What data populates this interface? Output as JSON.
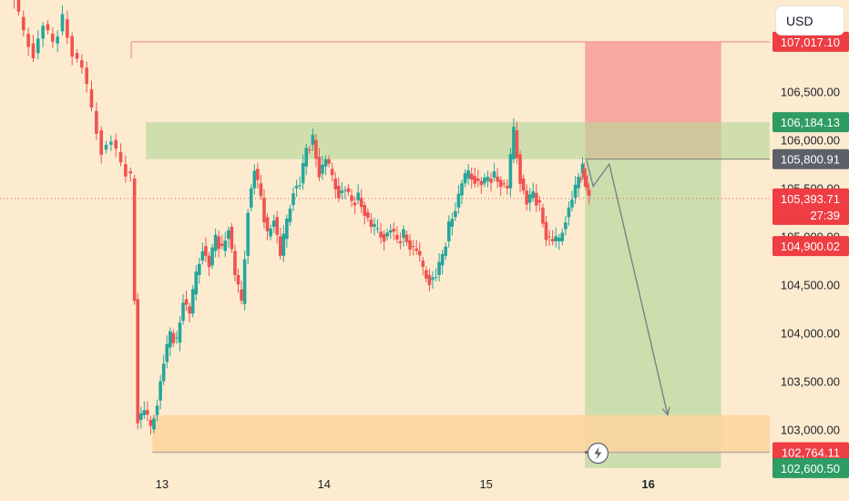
{
  "currency_button": "USD",
  "price_tags": {
    "stop_loss": "107,017.10",
    "entry_upper": "106,184.13",
    "entry": "105,800.91",
    "current_price": "105,393.71",
    "countdown": "27:39",
    "take_profit_1": "104,900.02",
    "support": "102,764.11",
    "bottom": "102,600.50"
  },
  "colors": {
    "up": "#26a69a",
    "down": "#ef5350",
    "background": "#fdebd0",
    "stop_zone": "#f7a09b",
    "profit_zone": "#c6dda8",
    "demand_zone": "#fdd49c",
    "resistance_zone": "#cde0b3",
    "tag_green": "#2e9c63",
    "tag_red": "#ee3d43",
    "tag_gray": "#5d6068"
  },
  "chart_data": {
    "type": "candlestick",
    "x_ticks": [
      "13",
      "14",
      "15",
      "16"
    ],
    "y_ticks": [
      "106,500.00",
      "106,000.00",
      "105,500.00",
      "105,000.00",
      "104,500.00",
      "104,000.00",
      "103,500.00",
      "103,000.00"
    ],
    "y_tick_values": [
      106500,
      106000,
      105500,
      105000,
      104500,
      104000,
      103500,
      103000
    ],
    "ylim": [
      102580,
      107450
    ],
    "xlim": [
      12.0,
      16.75
    ],
    "resistance_zone": [
      105800,
      106184
    ],
    "demand_zone": [
      102764,
      103150
    ],
    "stop_line": 107017,
    "entry": 105800.91,
    "current_price": 105393.71,
    "position": {
      "x_start": 15.61,
      "x_end": 16.45,
      "entry": 105800.91,
      "stop": 107017.1,
      "target": 102600.5
    },
    "projection": [
      [
        15.62,
        105790
      ],
      [
        15.66,
        105520
      ],
      [
        15.76,
        105750
      ],
      [
        16.12,
        103150
      ]
    ],
    "close_path": [
      [
        12.0,
        107900
      ],
      [
        12.05,
        107600
      ],
      [
        12.1,
        107450
      ],
      [
        12.16,
        107100
      ],
      [
        12.22,
        106900
      ],
      [
        12.28,
        107200
      ],
      [
        12.34,
        107000
      ],
      [
        12.4,
        107250
      ],
      [
        12.46,
        106900
      ],
      [
        12.52,
        106750
      ],
      [
        12.58,
        106300
      ],
      [
        12.64,
        105900
      ],
      [
        12.7,
        106000
      ],
      [
        12.76,
        105750
      ],
      [
        12.82,
        105600
      ],
      [
        12.86,
        103100
      ],
      [
        12.9,
        103200
      ],
      [
        12.94,
        103000
      ],
      [
        12.98,
        103300
      ],
      [
        13.02,
        103700
      ],
      [
        13.06,
        104000
      ],
      [
        13.1,
        103900
      ],
      [
        13.14,
        104350
      ],
      [
        13.18,
        104200
      ],
      [
        13.22,
        104600
      ],
      [
        13.26,
        104900
      ],
      [
        13.3,
        104700
      ],
      [
        13.34,
        105000
      ],
      [
        13.38,
        104850
      ],
      [
        13.42,
        105100
      ],
      [
        13.46,
        104600
      ],
      [
        13.5,
        104300
      ],
      [
        13.54,
        105300
      ],
      [
        13.58,
        105700
      ],
      [
        13.62,
        105400
      ],
      [
        13.66,
        105000
      ],
      [
        13.7,
        105200
      ],
      [
        13.74,
        104800
      ],
      [
        13.78,
        105150
      ],
      [
        13.82,
        105500
      ],
      [
        13.86,
        105550
      ],
      [
        13.9,
        105900
      ],
      [
        13.94,
        106000
      ],
      [
        13.98,
        105650
      ],
      [
        14.02,
        105800
      ],
      [
        14.06,
        105600
      ],
      [
        14.1,
        105450
      ],
      [
        14.14,
        105500
      ],
      [
        14.18,
        105350
      ],
      [
        14.22,
        105400
      ],
      [
        14.26,
        105250
      ],
      [
        14.3,
        105100
      ],
      [
        14.34,
        105050
      ],
      [
        14.38,
        105000
      ],
      [
        14.42,
        105080
      ],
      [
        14.46,
        104950
      ],
      [
        14.5,
        105020
      ],
      [
        14.54,
        104900
      ],
      [
        14.58,
        104850
      ],
      [
        14.62,
        104650
      ],
      [
        14.66,
        104550
      ],
      [
        14.7,
        104600
      ],
      [
        14.74,
        104800
      ],
      [
        14.78,
        105100
      ],
      [
        14.82,
        105300
      ],
      [
        14.86,
        105550
      ],
      [
        14.9,
        105650
      ],
      [
        14.94,
        105600
      ],
      [
        14.98,
        105550
      ],
      [
        15.02,
        105600
      ],
      [
        15.06,
        105620
      ],
      [
        15.1,
        105550
      ],
      [
        15.14,
        105500
      ],
      [
        15.18,
        106100
      ],
      [
        15.22,
        105600
      ],
      [
        15.26,
        105350
      ],
      [
        15.3,
        105450
      ],
      [
        15.34,
        105300
      ],
      [
        15.38,
        105000
      ],
      [
        15.42,
        104950
      ],
      [
        15.46,
        104950
      ],
      [
        15.5,
        105200
      ],
      [
        15.54,
        105400
      ],
      [
        15.58,
        105600
      ],
      [
        15.6,
        105700
      ],
      [
        15.62,
        105550
      ],
      [
        15.64,
        105420
      ]
    ]
  }
}
